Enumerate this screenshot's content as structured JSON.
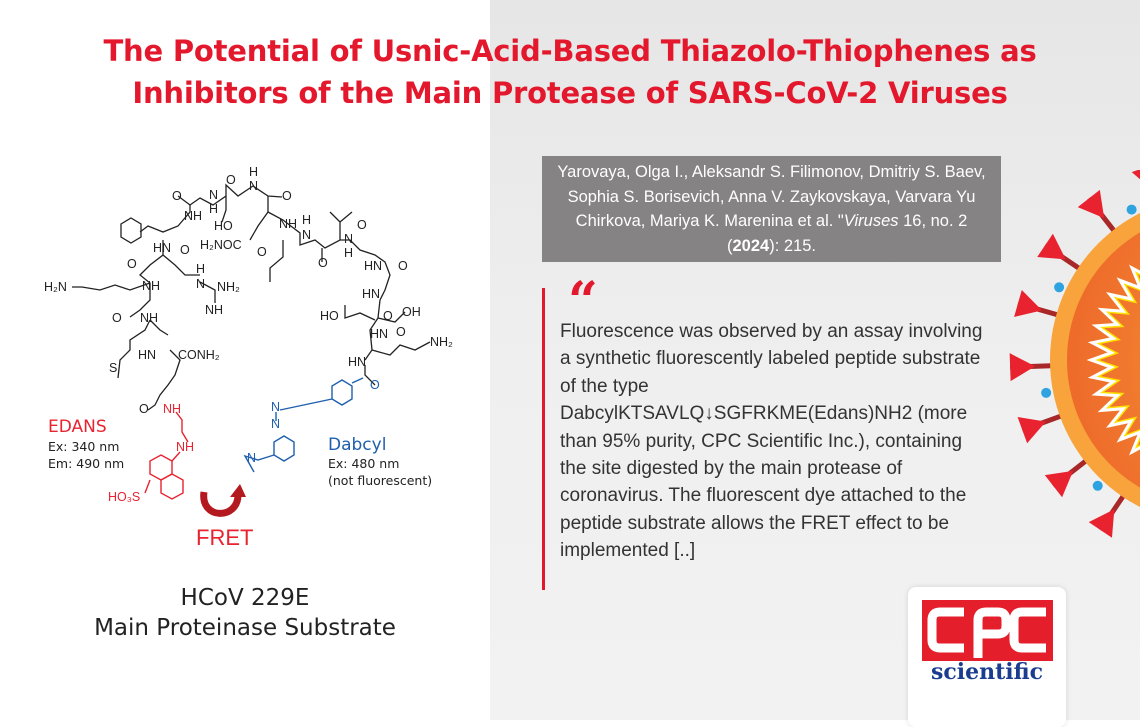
{
  "title": {
    "line1": "The Potential of Usnic-Acid-Based Thiazolo-Thiophenes as",
    "line2": "Inhibitors of the Main Protease of SARS-CoV-2 Viruses"
  },
  "citation": {
    "authors": "Yarovaya, Olga I., Aleksandr S. Filimonov, Dmitriy S. Baev, Sophia S. Borisevich, Anna V. Zaykovskaya, Varvara Yu Chirkova, Mariya K. Marenina et al. \"",
    "journal": "Viruses",
    "volume": " 16, no. 2 (",
    "year": "2024",
    "pages": "): 215."
  },
  "quote": {
    "mark": "“",
    "text": "Fluorescence was observed by an assay involving a synthetic fluorescently labeled peptide substrate of the type DabcylKTSAVLQ↓SGFRKME(Edans)NH2 (more than 95% purity, CPC Scientific Inc.), containing the site digested by the main protease of coronavirus. The fluorescent dye attached to the peptide substrate allows the FRET effect to be implemented [..]"
  },
  "structure": {
    "edans": {
      "name": "EDANS",
      "ex": "Ex: 340 nm",
      "em": "Em: 490 nm"
    },
    "dabcyl": {
      "name": "Dabcyl",
      "ex": "Ex: 480 nm",
      "note": "(not fluorescent)"
    },
    "fret": "FRET",
    "atom_labels_black": [
      "O",
      "O",
      "H",
      "N",
      "O",
      "N",
      "H",
      "NH",
      "HO",
      "NH",
      "H₂NOC",
      "H",
      "N",
      "O",
      "HN",
      "O",
      "O",
      "O",
      "N",
      "H",
      "O",
      "HN",
      "O",
      "NH",
      "H",
      "N",
      "NH₂",
      "H₂N",
      "NH",
      "HN",
      "OH",
      "HO",
      "O",
      "O",
      "NH",
      "HN",
      "O",
      "NH₂",
      "HN",
      "HN",
      "CONH₂",
      "S",
      "O"
    ],
    "atom_labels_red": [
      "NH",
      "NH",
      "HO₃S"
    ],
    "atom_labels_blue": [
      "O",
      "N",
      "N",
      "N"
    ]
  },
  "caption": {
    "line1": "HCoV 229E",
    "line2": "Main Proteinase Substrate"
  },
  "logo": {
    "brand": "CPC",
    "sub": "scientific"
  },
  "colors": {
    "accent_red": "#e3182d",
    "citation_bg": "#858384",
    "edans": "#e8232f",
    "dabcyl": "#1f5fae",
    "logo_blue": "#1a3d8f"
  }
}
